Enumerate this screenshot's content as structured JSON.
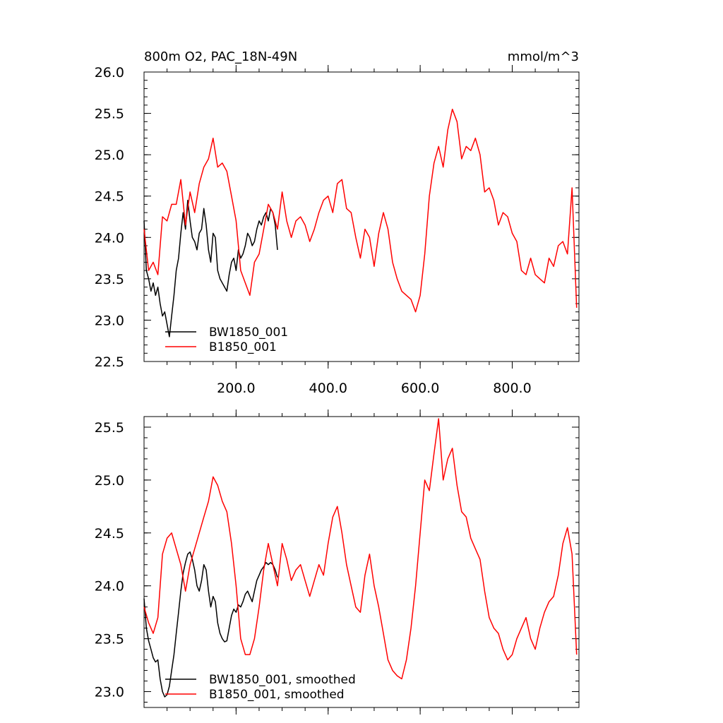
{
  "figure": {
    "title_left": "800m O2, PAC_18N-49N",
    "title_right": "mmol/m^3"
  },
  "chart_data": [
    {
      "type": "line",
      "xlim": [
        0,
        945
      ],
      "ylim": [
        22.5,
        26.0
      ],
      "xticks": [
        200,
        400,
        600,
        800
      ],
      "xtick_labels": [
        "200.0",
        "400.0",
        "600.0",
        "800.0"
      ],
      "yticks": [
        22.5,
        23.0,
        23.5,
        24.0,
        24.5,
        25.0,
        25.5,
        26.0
      ],
      "ytick_labels": [
        "22.5",
        "23.0",
        "23.5",
        "24.0",
        "24.5",
        "25.0",
        "25.5",
        "26.0"
      ],
      "grid": false,
      "legend_position": "bottom-left",
      "series": [
        {
          "name": "BW1850_001",
          "color": "#000000",
          "x": [
            0,
            5,
            10,
            15,
            20,
            25,
            30,
            35,
            40,
            45,
            50,
            55,
            60,
            65,
            70,
            75,
            80,
            85,
            90,
            95,
            100,
            105,
            110,
            115,
            120,
            125,
            130,
            135,
            140,
            145,
            150,
            155,
            160,
            165,
            170,
            175,
            180,
            185,
            190,
            195,
            200,
            205,
            210,
            215,
            220,
            225,
            230,
            235,
            240,
            245,
            250,
            255,
            260,
            265,
            270,
            275,
            280,
            285,
            290
          ],
          "values": [
            24.2,
            23.6,
            23.5,
            23.35,
            23.45,
            23.3,
            23.4,
            23.2,
            23.05,
            23.1,
            22.95,
            22.8,
            23.05,
            23.3,
            23.6,
            23.75,
            24.05,
            24.3,
            24.1,
            24.45,
            24.2,
            24.0,
            23.95,
            23.85,
            24.05,
            24.1,
            24.35,
            24.15,
            23.85,
            23.7,
            24.05,
            24.0,
            23.6,
            23.5,
            23.45,
            23.4,
            23.35,
            23.55,
            23.7,
            23.75,
            23.6,
            23.85,
            23.75,
            23.8,
            23.9,
            24.05,
            24.0,
            23.9,
            23.95,
            24.1,
            24.2,
            24.15,
            24.25,
            24.3,
            24.2,
            24.35,
            24.3,
            24.15,
            23.85
          ]
        },
        {
          "name": "B1850_001",
          "color": "#ff0000",
          "x": [
            0,
            10,
            20,
            30,
            40,
            50,
            60,
            70,
            80,
            90,
            100,
            110,
            120,
            130,
            140,
            150,
            160,
            170,
            180,
            190,
            200,
            210,
            220,
            230,
            240,
            250,
            260,
            270,
            280,
            290,
            300,
            310,
            320,
            330,
            340,
            350,
            360,
            370,
            380,
            390,
            400,
            410,
            420,
            430,
            440,
            450,
            460,
            470,
            480,
            490,
            500,
            510,
            520,
            530,
            540,
            550,
            560,
            570,
            580,
            590,
            600,
            610,
            620,
            630,
            640,
            650,
            660,
            670,
            680,
            690,
            700,
            710,
            720,
            730,
            740,
            750,
            760,
            770,
            780,
            790,
            800,
            810,
            820,
            830,
            840,
            850,
            860,
            870,
            880,
            890,
            900,
            910,
            920,
            930,
            940
          ],
          "values": [
            24.1,
            23.6,
            23.7,
            23.55,
            24.25,
            24.2,
            24.4,
            24.4,
            24.7,
            24.15,
            24.55,
            24.3,
            24.65,
            24.85,
            24.95,
            25.2,
            24.85,
            24.9,
            24.8,
            24.5,
            24.2,
            23.6,
            23.45,
            23.3,
            23.7,
            23.8,
            24.1,
            24.4,
            24.3,
            24.1,
            24.55,
            24.2,
            24.0,
            24.2,
            24.25,
            24.15,
            23.95,
            24.1,
            24.3,
            24.45,
            24.5,
            24.3,
            24.65,
            24.7,
            24.35,
            24.3,
            24.0,
            23.75,
            24.1,
            24.0,
            23.65,
            24.05,
            24.3,
            24.1,
            23.7,
            23.5,
            23.35,
            23.3,
            23.25,
            23.1,
            23.3,
            23.8,
            24.5,
            24.9,
            25.1,
            24.85,
            25.3,
            25.55,
            25.4,
            24.95,
            25.1,
            25.05,
            25.2,
            25.0,
            24.55,
            24.6,
            24.45,
            24.15,
            24.3,
            24.25,
            24.05,
            23.95,
            23.6,
            23.55,
            23.75,
            23.55,
            23.5,
            23.45,
            23.75,
            23.65,
            23.9,
            23.95,
            23.8,
            24.6,
            23.15
          ]
        }
      ]
    },
    {
      "type": "line",
      "xlim": [
        0,
        945
      ],
      "ylim": [
        22.85,
        25.6
      ],
      "xticks": [
        200,
        400,
        600,
        800
      ],
      "xtick_labels": [],
      "yticks": [
        23.0,
        23.5,
        24.0,
        24.5,
        25.0,
        25.5
      ],
      "ytick_labels": [
        "23.0",
        "23.5",
        "24.0",
        "24.5",
        "25.0",
        "25.5"
      ],
      "grid": false,
      "legend_position": "bottom-left",
      "series": [
        {
          "name": "BW1850_001, smoothed",
          "color": "#000000",
          "x": [
            0,
            5,
            10,
            15,
            20,
            25,
            30,
            35,
            40,
            45,
            50,
            55,
            60,
            65,
            70,
            75,
            80,
            85,
            90,
            95,
            100,
            105,
            110,
            115,
            120,
            125,
            130,
            135,
            140,
            145,
            150,
            155,
            160,
            165,
            170,
            175,
            180,
            185,
            190,
            195,
            200,
            205,
            210,
            215,
            220,
            225,
            230,
            235,
            240,
            245,
            250,
            255,
            260,
            265,
            270,
            275,
            280,
            285,
            290
          ],
          "values": [
            23.88,
            23.6,
            23.48,
            23.4,
            23.32,
            23.28,
            23.3,
            23.12,
            23.0,
            22.95,
            22.97,
            23.05,
            23.2,
            23.35,
            23.55,
            23.75,
            23.95,
            24.12,
            24.22,
            24.3,
            24.32,
            24.25,
            24.15,
            24.0,
            23.95,
            24.05,
            24.2,
            24.15,
            23.95,
            23.8,
            23.9,
            23.85,
            23.65,
            23.55,
            23.5,
            23.47,
            23.48,
            23.6,
            23.72,
            23.78,
            23.75,
            23.82,
            23.8,
            23.85,
            23.92,
            23.95,
            23.9,
            23.85,
            23.95,
            24.05,
            24.1,
            24.15,
            24.18,
            24.22,
            24.2,
            24.22,
            24.2,
            24.15,
            24.08
          ]
        },
        {
          "name": "B1850_001, smoothed",
          "color": "#ff0000",
          "x": [
            0,
            10,
            20,
            30,
            40,
            50,
            60,
            70,
            80,
            90,
            100,
            110,
            120,
            130,
            140,
            150,
            160,
            170,
            180,
            190,
            200,
            210,
            220,
            230,
            240,
            250,
            260,
            270,
            280,
            290,
            300,
            310,
            320,
            330,
            340,
            350,
            360,
            370,
            380,
            390,
            400,
            410,
            420,
            430,
            440,
            450,
            460,
            470,
            480,
            490,
            500,
            510,
            520,
            530,
            540,
            550,
            560,
            570,
            580,
            590,
            600,
            610,
            620,
            630,
            640,
            650,
            660,
            670,
            680,
            690,
            700,
            710,
            720,
            730,
            740,
            750,
            760,
            770,
            780,
            790,
            800,
            810,
            820,
            830,
            840,
            850,
            860,
            870,
            880,
            890,
            900,
            910,
            920,
            930,
            940
          ],
          "values": [
            23.8,
            23.65,
            23.55,
            23.7,
            24.3,
            24.45,
            24.5,
            24.35,
            24.2,
            23.95,
            24.2,
            24.35,
            24.5,
            24.65,
            24.8,
            25.03,
            24.95,
            24.8,
            24.7,
            24.4,
            24.0,
            23.5,
            23.35,
            23.35,
            23.5,
            23.8,
            24.15,
            24.4,
            24.2,
            24.0,
            24.4,
            24.25,
            24.05,
            24.15,
            24.2,
            24.05,
            23.9,
            24.05,
            24.2,
            24.1,
            24.4,
            24.65,
            24.75,
            24.5,
            24.2,
            24.0,
            23.8,
            23.75,
            24.1,
            24.3,
            24.0,
            23.8,
            23.55,
            23.3,
            23.2,
            23.15,
            23.12,
            23.3,
            23.6,
            24.0,
            24.5,
            25.0,
            24.9,
            25.25,
            25.58,
            25.0,
            25.2,
            25.3,
            24.95,
            24.7,
            24.65,
            24.45,
            24.35,
            24.25,
            23.95,
            23.7,
            23.6,
            23.55,
            23.4,
            23.3,
            23.35,
            23.5,
            23.6,
            23.7,
            23.5,
            23.4,
            23.6,
            23.75,
            23.85,
            23.9,
            24.1,
            24.4,
            24.55,
            24.3,
            23.35
          ]
        }
      ]
    }
  ]
}
